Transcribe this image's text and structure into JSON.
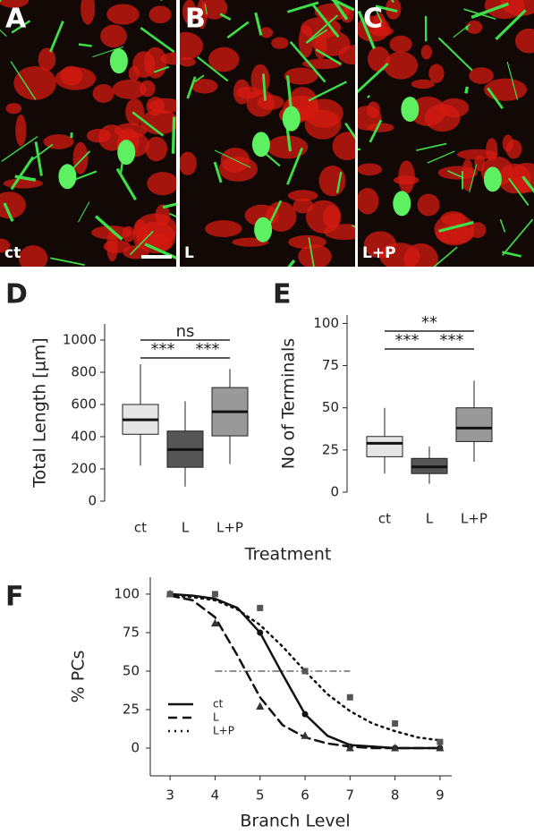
{
  "images": [
    {
      "letter": "A",
      "label": "ct"
    },
    {
      "letter": "B",
      "label": "L"
    },
    {
      "letter": "C",
      "label": "L+P"
    }
  ],
  "chart_data": [
    {
      "type": "box",
      "label": "D",
      "ylabel": "Total Length [µm]",
      "xlabel": "Treatment",
      "categories": [
        "ct",
        "L",
        "L+P"
      ],
      "boxes": [
        {
          "low": 220,
          "q1": 415,
          "median": 505,
          "q3": 600,
          "high": 850,
          "color": "#e6e6e6"
        },
        {
          "low": 90,
          "q1": 210,
          "median": 320,
          "q3": 435,
          "high": 620,
          "color": "#555555"
        },
        {
          "low": 230,
          "q1": 405,
          "median": 555,
          "q3": 705,
          "high": 820,
          "color": "#999999"
        }
      ],
      "ylim": [
        0,
        1100
      ],
      "yticks": [
        0,
        200,
        400,
        600,
        800,
        1000
      ],
      "comparisons": [
        {
          "pair": [
            0,
            1
          ],
          "label": "***"
        },
        {
          "pair": [
            1,
            2
          ],
          "label": "***"
        },
        {
          "pair": [
            0,
            2
          ],
          "label": "ns"
        }
      ]
    },
    {
      "type": "box",
      "label": "E",
      "ylabel": "No of Terminals",
      "categories": [
        "ct",
        "L",
        "L+P"
      ],
      "boxes": [
        {
          "low": 11,
          "q1": 21,
          "median": 29,
          "q3": 33,
          "high": 50,
          "color": "#e6e6e6"
        },
        {
          "low": 5,
          "q1": 11,
          "median": 15,
          "q3": 20,
          "high": 27,
          "color": "#555555"
        },
        {
          "low": 18,
          "q1": 30,
          "median": 38,
          "q3": 50,
          "high": 66,
          "color": "#999999"
        }
      ],
      "ylim": [
        0,
        105
      ],
      "yticks": [
        0,
        25,
        50,
        75,
        100
      ],
      "comparisons": [
        {
          "pair": [
            0,
            1
          ],
          "label": "***"
        },
        {
          "pair": [
            1,
            2
          ],
          "label": "***"
        },
        {
          "pair": [
            0,
            2
          ],
          "label": "**"
        }
      ]
    },
    {
      "type": "line",
      "label": "F",
      "xlabel": "Branch Level",
      "ylabel": "% PCs",
      "x": [
        3,
        4,
        5,
        6,
        7,
        8,
        9
      ],
      "fit_x": [
        3,
        3.5,
        4,
        4.5,
        5,
        5.5,
        6,
        6.5,
        7,
        7.5,
        8,
        8.5,
        9
      ],
      "series": [
        {
          "name": "ct",
          "marker": "circle",
          "dash": "solid",
          "color": "#111111",
          "values": [
            100,
            100,
            75,
            22,
            1,
            0,
            0
          ],
          "fit": [
            100,
            99,
            97,
            91,
            75,
            48,
            22,
            8,
            2,
            1,
            0,
            0,
            0
          ]
        },
        {
          "name": "L",
          "marker": "triangle",
          "dash": "dashed",
          "color": "#333333",
          "values": [
            100,
            81,
            27,
            8,
            0,
            0,
            0
          ],
          "fit": [
            99,
            96,
            85,
            60,
            33,
            15,
            7,
            3,
            1,
            0,
            0,
            0,
            0
          ]
        },
        {
          "name": "L+P",
          "marker": "square",
          "dash": "dotted",
          "color": "#555555",
          "values": [
            100,
            100,
            91,
            50,
            33,
            16,
            4
          ],
          "fit": [
            99,
            98,
            96,
            90,
            80,
            66,
            50,
            35,
            24,
            16,
            11,
            7,
            5
          ]
        }
      ],
      "reference_line": {
        "y": 50,
        "x": [
          4,
          7
        ]
      },
      "xlim": [
        2.56,
        9.26
      ],
      "ylim": [
        -18,
        111
      ],
      "xticks": [
        3,
        4,
        5,
        6,
        7,
        8,
        9
      ],
      "yticks": [
        0,
        25,
        50,
        75,
        100
      ],
      "legend": "lower-left"
    }
  ]
}
